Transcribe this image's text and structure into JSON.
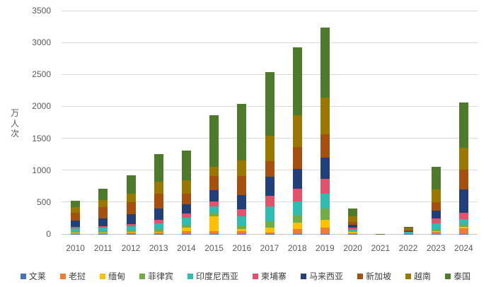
{
  "chart_data": {
    "type": "bar",
    "stacked": true,
    "ylabel": "万人次",
    "ylim": [
      0,
      3500
    ],
    "yticks": [
      0,
      500,
      1000,
      1500,
      2000,
      2500,
      3000,
      3500
    ],
    "grid": true,
    "legend_position": "bottom",
    "categories": [
      "2010",
      "2011",
      "2012",
      "2013",
      "2014",
      "2015",
      "2016",
      "2017",
      "2018",
      "2019",
      "2020",
      "2021",
      "2022",
      "2023",
      "2024"
    ],
    "series": [
      {
        "name": "文莱",
        "color": "#4472C4",
        "values": [
          2,
          2,
          2,
          3,
          2,
          2,
          2,
          2,
          3,
          3,
          1,
          0,
          1,
          3,
          2
        ]
      },
      {
        "name": "老挝",
        "color": "#ED7D31",
        "values": [
          13,
          15,
          18,
          18,
          45,
          46,
          48,
          20,
          80,
          100,
          15,
          0,
          8,
          33,
          90
        ]
      },
      {
        "name": "缅甸",
        "color": "#FFC000",
        "values": [
          6,
          6,
          9,
          10,
          55,
          233,
          26,
          75,
          93,
          123,
          12,
          0,
          3,
          12,
          22
        ]
      },
      {
        "name": "菲律宾",
        "color": "#70AD47",
        "values": [
          20,
          23,
          24,
          44,
          44,
          52,
          56,
          99,
          119,
          174,
          15,
          0,
          3,
          26,
          26
        ]
      },
      {
        "name": "印度尼西亚",
        "color": "#30BCB0",
        "values": [
          45,
          56,
          68,
          95,
          111,
          104,
          148,
          233,
          214,
          233,
          25,
          1,
          20,
          93,
          93
        ]
      },
      {
        "name": "柬埔寨",
        "color": "#E2526B",
        "values": [
          20,
          23,
          30,
          48,
          59,
          74,
          104,
          174,
          204,
          230,
          35,
          0,
          5,
          74,
          100
        ]
      },
      {
        "name": "马来西亚",
        "color": "#21407A",
        "values": [
          110,
          122,
          158,
          185,
          148,
          174,
          222,
          289,
          304,
          333,
          40,
          1,
          8,
          129,
          363
        ]
      },
      {
        "name": "新加坡",
        "color": "#A5500F",
        "values": [
          115,
          175,
          195,
          227,
          170,
          222,
          305,
          248,
          344,
          363,
          40,
          1,
          18,
          130,
          315
        ]
      },
      {
        "name": "越南",
        "color": "#9A7800",
        "values": [
          85,
          105,
          130,
          195,
          204,
          148,
          244,
          396,
          500,
          582,
          90,
          1,
          18,
          203,
          341
        ]
      },
      {
        "name": "泰国",
        "color": "#4E7A2B",
        "values": [
          110,
          185,
          288,
          432,
          470,
          807,
          880,
          1004,
          1063,
          1092,
          125,
          1,
          25,
          345,
          707
        ]
      }
    ]
  },
  "style": {
    "grid_color": "#D9D9D9",
    "axis_color": "#C6C6C6",
    "tick_label_color": "#595959",
    "background": "#FFFFFF"
  }
}
